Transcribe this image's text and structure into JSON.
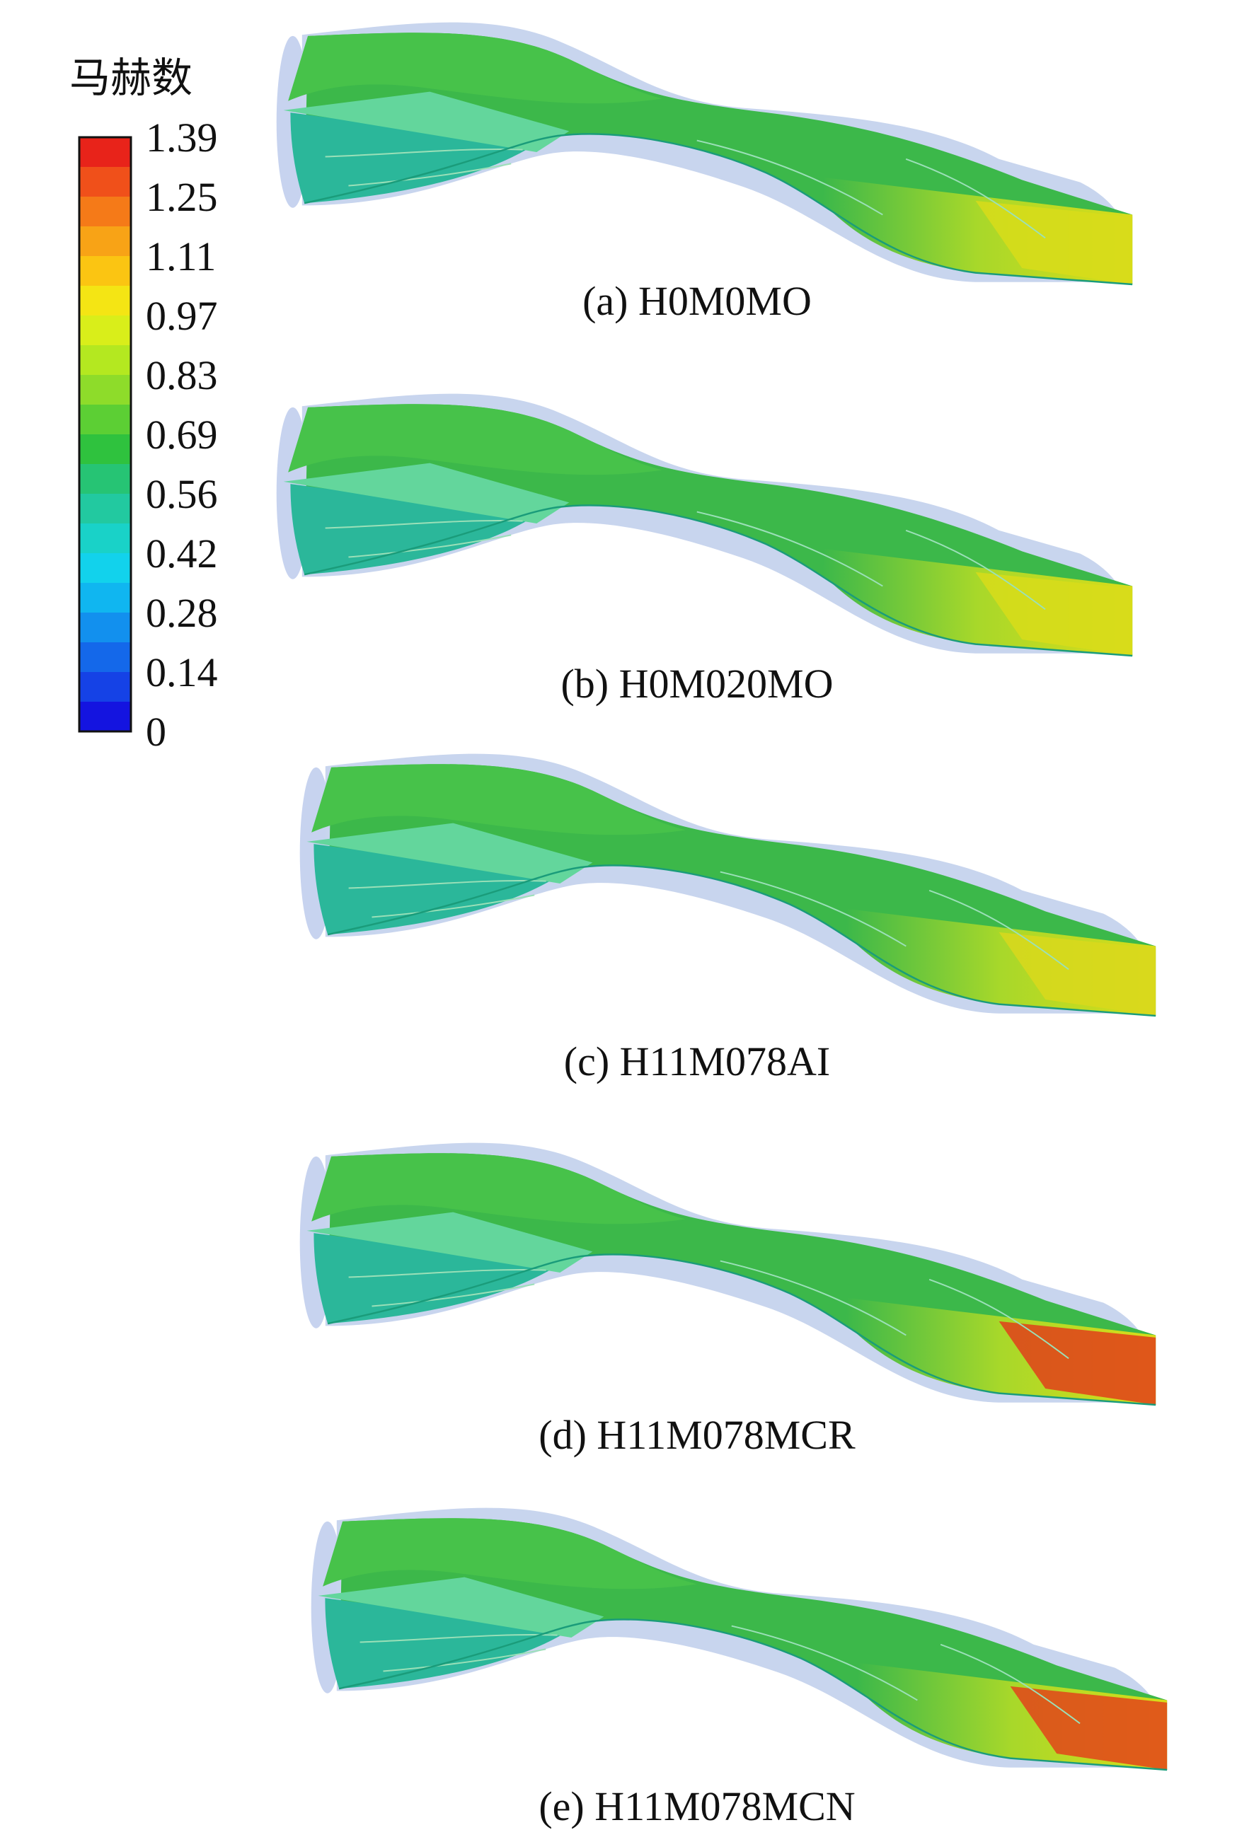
{
  "legend": {
    "title": "马赫数",
    "labels": [
      "1.39",
      "1.25",
      "1.11",
      "0.97",
      "0.83",
      "0.69",
      "0.56",
      "0.42",
      "0.28",
      "0.14",
      "0"
    ]
  },
  "panels": [
    {
      "caption": "(a) H0M0MO"
    },
    {
      "caption": "(b) H0M020MO"
    },
    {
      "caption": "(c) H11M078AI"
    },
    {
      "caption": "(d) H11M078MCR"
    },
    {
      "caption": "(e) H11M078MCN"
    }
  ]
}
